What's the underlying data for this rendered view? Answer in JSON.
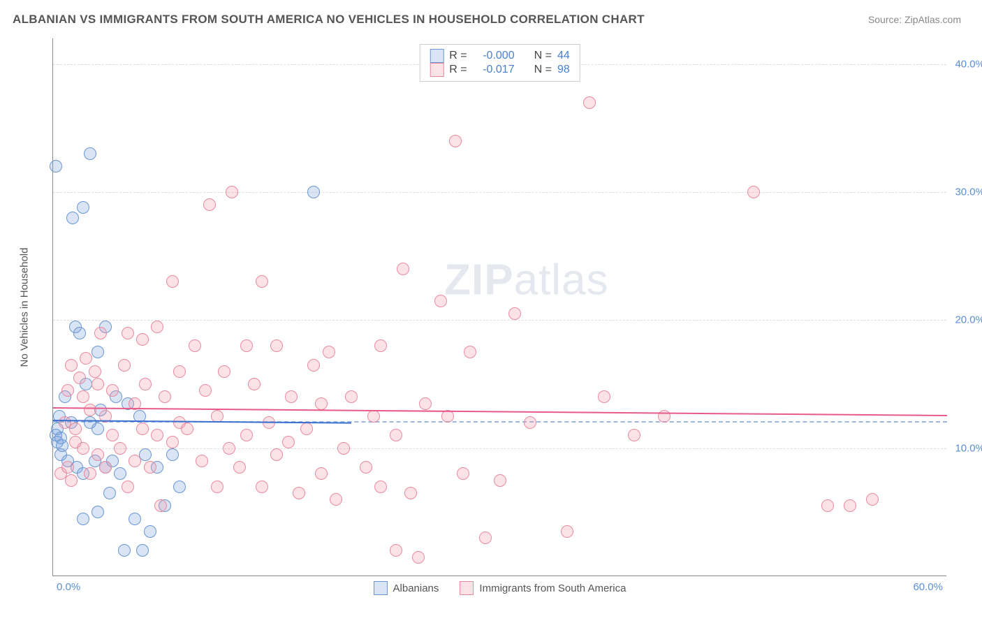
{
  "header": {
    "title": "ALBANIAN VS IMMIGRANTS FROM SOUTH AMERICA NO VEHICLES IN HOUSEHOLD CORRELATION CHART",
    "source": "Source: ZipAtlas.com"
  },
  "chart": {
    "type": "scatter",
    "ylabel": "No Vehicles in Household",
    "xlim": [
      0,
      60
    ],
    "ylim": [
      0,
      42
    ],
    "xtick_labels": {
      "min": "0.0%",
      "max": "60.0%"
    },
    "yticks": [
      10,
      20,
      30,
      40
    ],
    "ytick_labels": [
      "10.0%",
      "20.0%",
      "30.0%",
      "40.0%"
    ],
    "grid_color": "#dddddd",
    "axis_color": "#888888",
    "tick_color": "#5a8fd6",
    "background_color": "#ffffff",
    "watermark": "ZIPatlas",
    "point_radius": 9,
    "series": [
      {
        "name": "Albanians",
        "fill": "rgba(120,160,220,0.28)",
        "stroke": "#6a95d0",
        "trend_color": "#3b6fd0",
        "R_label": "R =",
        "R": "-0.000",
        "N_label": "N =",
        "N": "44",
        "trend": {
          "x1": 0,
          "y1": 12.2,
          "x2": 20,
          "y2": 12.0,
          "extends": false
        },
        "points": [
          [
            0.2,
            32
          ],
          [
            0.2,
            11
          ],
          [
            0.3,
            10.5
          ],
          [
            0.3,
            11.5
          ],
          [
            0.4,
            12.5
          ],
          [
            0.5,
            10.8
          ],
          [
            0.5,
            9.5
          ],
          [
            0.6,
            10.2
          ],
          [
            0.8,
            14
          ],
          [
            1,
            9
          ],
          [
            1.2,
            12
          ],
          [
            1.3,
            28
          ],
          [
            1.5,
            19.5
          ],
          [
            1.6,
            8.5
          ],
          [
            1.8,
            19
          ],
          [
            2,
            28.8
          ],
          [
            2,
            8
          ],
          [
            2,
            4.5
          ],
          [
            2.2,
            15
          ],
          [
            2.5,
            33
          ],
          [
            2.5,
            12
          ],
          [
            2.8,
            9
          ],
          [
            3,
            17.5
          ],
          [
            3,
            11.5
          ],
          [
            3,
            5
          ],
          [
            3.2,
            13
          ],
          [
            3.5,
            19.5
          ],
          [
            3.5,
            8.5
          ],
          [
            3.8,
            6.5
          ],
          [
            4,
            9
          ],
          [
            4.2,
            14
          ],
          [
            4.5,
            8
          ],
          [
            4.8,
            2
          ],
          [
            5,
            13.5
          ],
          [
            5.5,
            4.5
          ],
          [
            5.8,
            12.5
          ],
          [
            6,
            2
          ],
          [
            6.2,
            9.5
          ],
          [
            6.5,
            3.5
          ],
          [
            7,
            8.5
          ],
          [
            7.5,
            5.5
          ],
          [
            8,
            9.5
          ],
          [
            8.5,
            7
          ],
          [
            17.5,
            30
          ]
        ]
      },
      {
        "name": "Immigrants from South America",
        "fill": "rgba(240,150,170,0.28)",
        "stroke": "#e88aa0",
        "trend_color": "#e85a8a",
        "R_label": "R =",
        "R": "-0.017",
        "N_label": "N =",
        "N": "98",
        "trend": {
          "x1": 0,
          "y1": 13.2,
          "x2": 60,
          "y2": 12.6,
          "extends": true
        },
        "points": [
          [
            0.5,
            8
          ],
          [
            0.8,
            12
          ],
          [
            1,
            8.5
          ],
          [
            1,
            14.5
          ],
          [
            1.2,
            7.5
          ],
          [
            1.2,
            16.5
          ],
          [
            1.5,
            10.5
          ],
          [
            1.5,
            11.5
          ],
          [
            1.8,
            15.5
          ],
          [
            2,
            14
          ],
          [
            2,
            10
          ],
          [
            2.2,
            17
          ],
          [
            2.5,
            13
          ],
          [
            2.5,
            8
          ],
          [
            2.8,
            16
          ],
          [
            3,
            9.5
          ],
          [
            3,
            15
          ],
          [
            3.2,
            19
          ],
          [
            3.5,
            8.5
          ],
          [
            3.5,
            12.5
          ],
          [
            4,
            11
          ],
          [
            4,
            14.5
          ],
          [
            4.5,
            10
          ],
          [
            4.8,
            16.5
          ],
          [
            5,
            19
          ],
          [
            5,
            7
          ],
          [
            5.5,
            13.5
          ],
          [
            5.5,
            9
          ],
          [
            6,
            11.5
          ],
          [
            6,
            18.5
          ],
          [
            6.2,
            15
          ],
          [
            6.5,
            8.5
          ],
          [
            7,
            19.5
          ],
          [
            7,
            11
          ],
          [
            7.2,
            5.5
          ],
          [
            7.5,
            14
          ],
          [
            8,
            10.5
          ],
          [
            8,
            23
          ],
          [
            8.5,
            12
          ],
          [
            8.5,
            16
          ],
          [
            9,
            11.5
          ],
          [
            9.5,
            18
          ],
          [
            10,
            9
          ],
          [
            10.2,
            14.5
          ],
          [
            10.5,
            29
          ],
          [
            11,
            7
          ],
          [
            11,
            12.5
          ],
          [
            11.5,
            16
          ],
          [
            11.8,
            10
          ],
          [
            12,
            30
          ],
          [
            12.5,
            8.5
          ],
          [
            13,
            18
          ],
          [
            13,
            11
          ],
          [
            13.5,
            15
          ],
          [
            14,
            7
          ],
          [
            14,
            23
          ],
          [
            14.5,
            12
          ],
          [
            15,
            9.5
          ],
          [
            15,
            18
          ],
          [
            15.8,
            10.5
          ],
          [
            16,
            14
          ],
          [
            16.5,
            6.5
          ],
          [
            17,
            11.5
          ],
          [
            17.5,
            16.5
          ],
          [
            18,
            8
          ],
          [
            18,
            13.5
          ],
          [
            18.5,
            17.5
          ],
          [
            19,
            6
          ],
          [
            19.5,
            10
          ],
          [
            20,
            14
          ],
          [
            21,
            8.5
          ],
          [
            21.5,
            12.5
          ],
          [
            22,
            7
          ],
          [
            22,
            18
          ],
          [
            23,
            11
          ],
          [
            23,
            2
          ],
          [
            23.5,
            24
          ],
          [
            24,
            6.5
          ],
          [
            24.5,
            1.5
          ],
          [
            25,
            13.5
          ],
          [
            26,
            21.5
          ],
          [
            26.5,
            12.5
          ],
          [
            27,
            34
          ],
          [
            27.5,
            8
          ],
          [
            28,
            17.5
          ],
          [
            29,
            3
          ],
          [
            30,
            7.5
          ],
          [
            31,
            20.5
          ],
          [
            32,
            12
          ],
          [
            34.5,
            3.5
          ],
          [
            36,
            37
          ],
          [
            37,
            14
          ],
          [
            39,
            11
          ],
          [
            41,
            12.5
          ],
          [
            47,
            30
          ],
          [
            52,
            5.5
          ],
          [
            53.5,
            5.5
          ],
          [
            55,
            6
          ]
        ]
      }
    ],
    "dashed_reference": {
      "y": 12.1
    }
  },
  "legend_bottom": [
    {
      "label": "Albanians",
      "fill": "rgba(120,160,220,0.28)",
      "stroke": "#6a95d0"
    },
    {
      "label": "Immigrants from South America",
      "fill": "rgba(240,150,170,0.28)",
      "stroke": "#e88aa0"
    }
  ]
}
